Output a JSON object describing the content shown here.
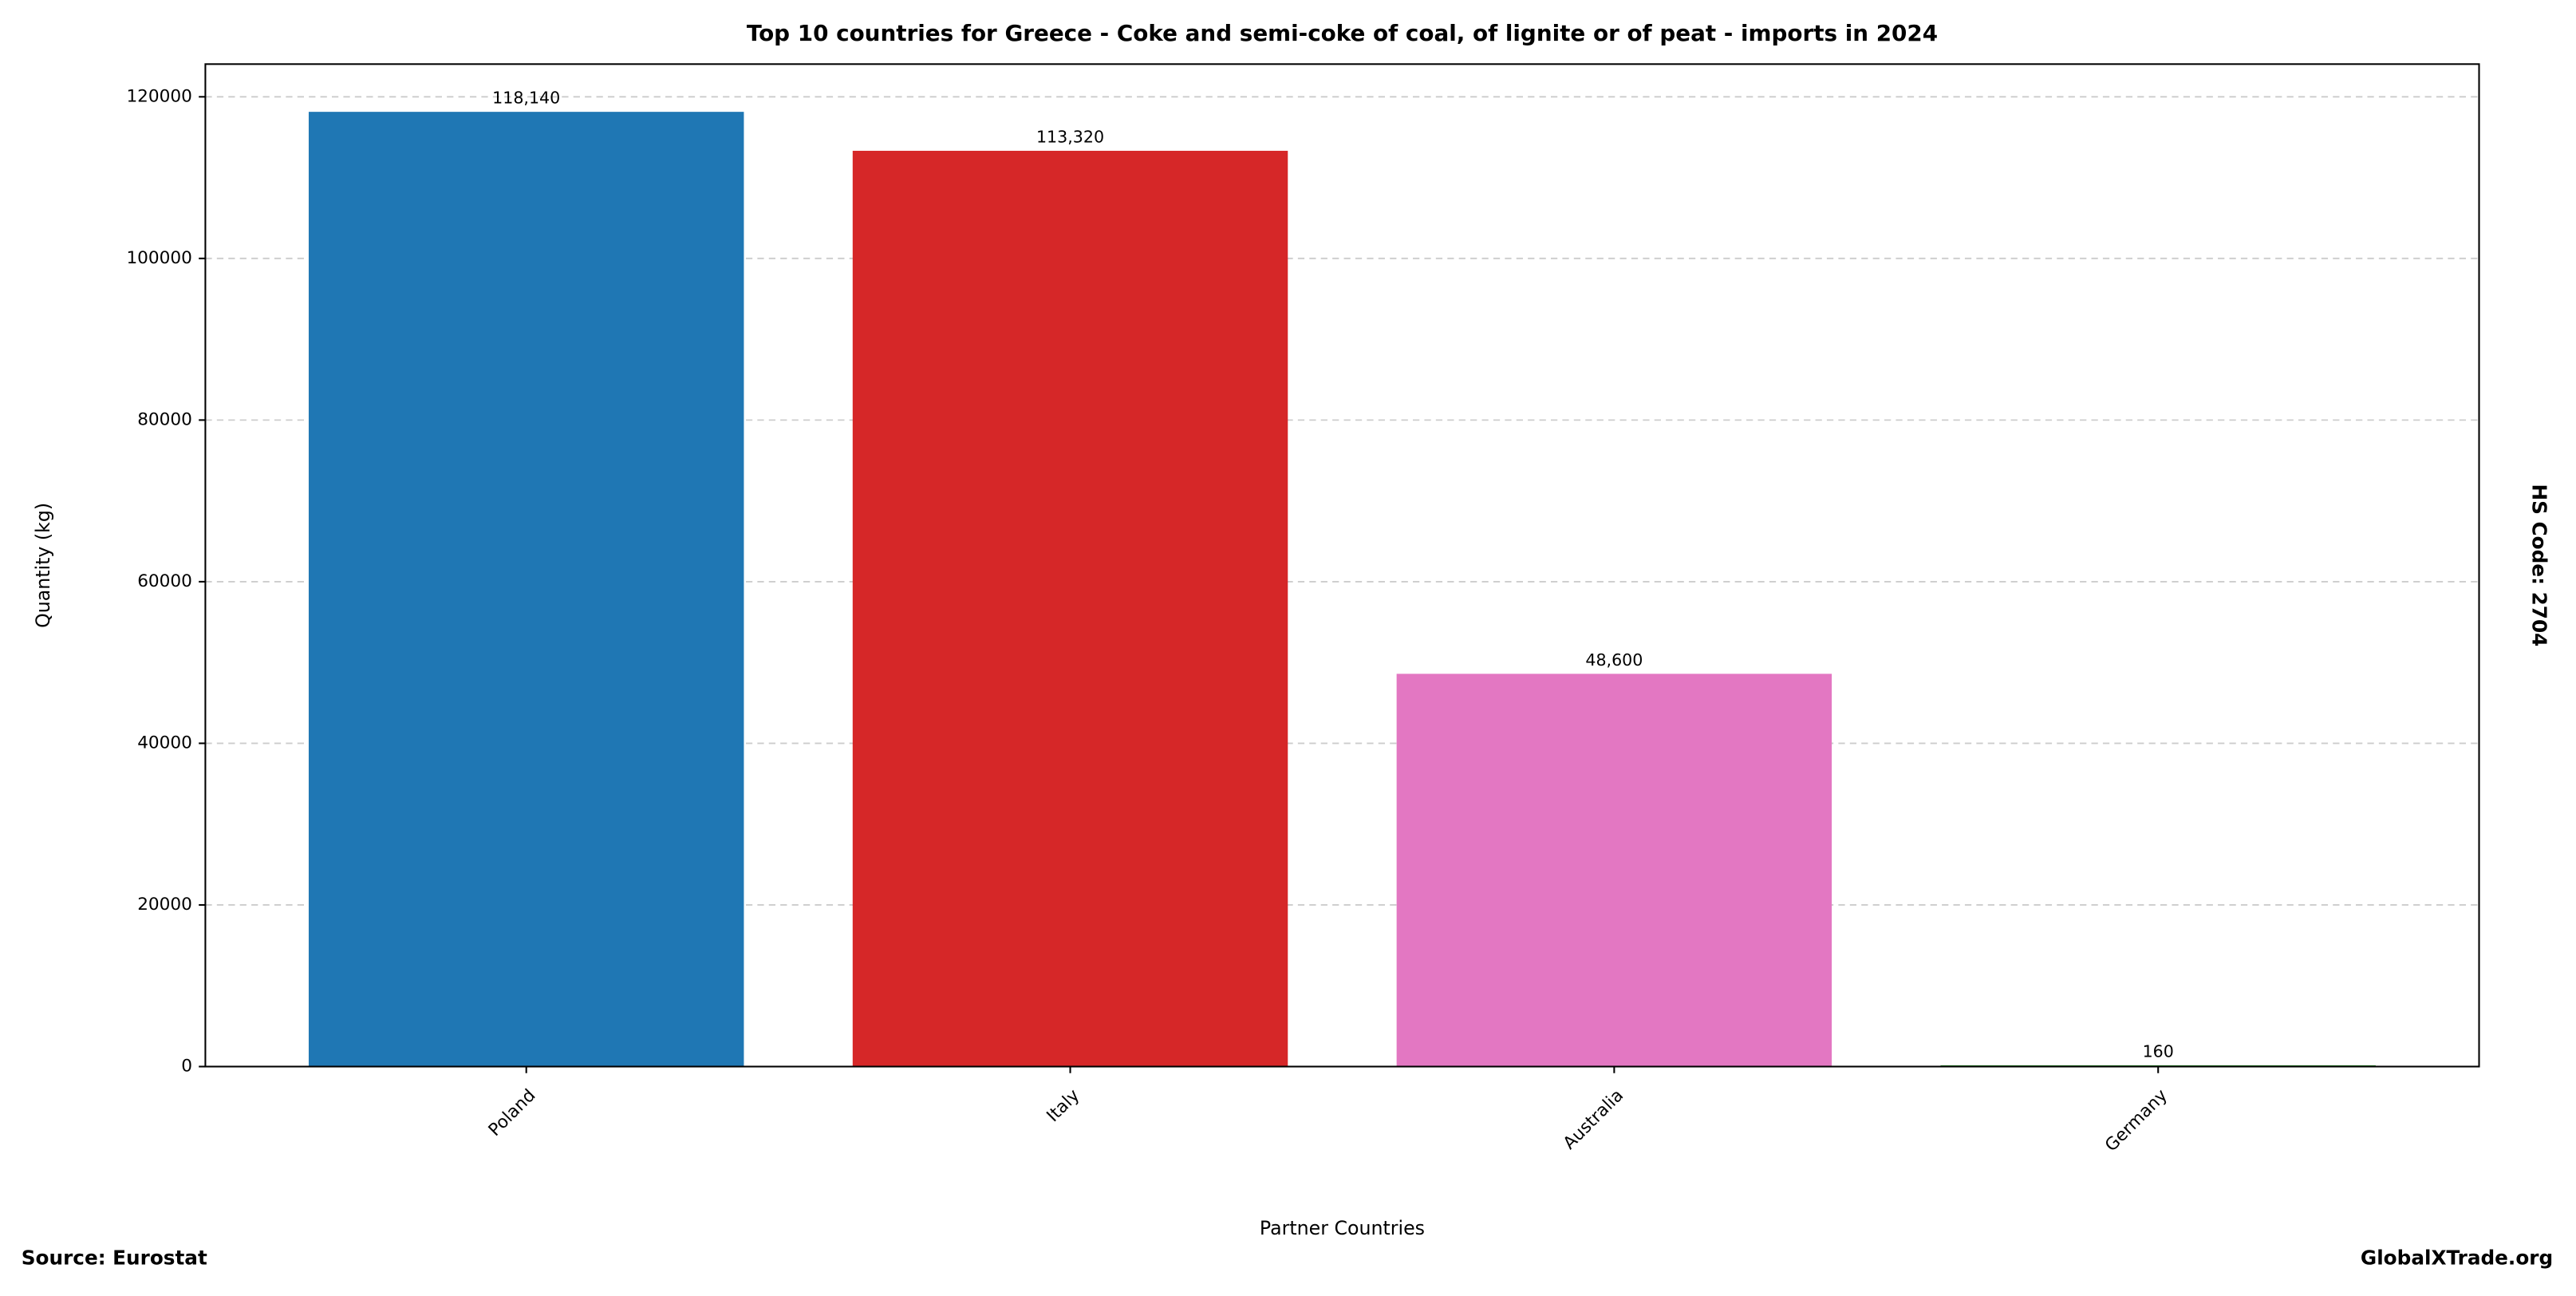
{
  "chart_data": {
    "type": "bar",
    "title": "Top 10 countries for Greece - Coke and semi-coke of coal, of lignite or of peat - imports in 2024",
    "xlabel": "Partner Countries",
    "ylabel": "Quantity (kg)",
    "categories": [
      "Poland",
      "Italy",
      "Australia",
      "Germany"
    ],
    "values": [
      118140,
      113320,
      48600,
      160
    ],
    "value_labels": [
      "118,140",
      "113,320",
      "48,600",
      "160"
    ],
    "colors": [
      "#1f77b4",
      "#d62728",
      "#e377c2",
      "#2ca02c"
    ],
    "ylim": [
      0,
      124047
    ],
    "yticks": [
      0,
      20000,
      40000,
      60000,
      80000,
      100000,
      120000
    ],
    "grid": true
  },
  "side_label": "HS Code: 2704",
  "footer": {
    "source": "Source: Eurostat",
    "site": "GlobalXTrade.org"
  }
}
